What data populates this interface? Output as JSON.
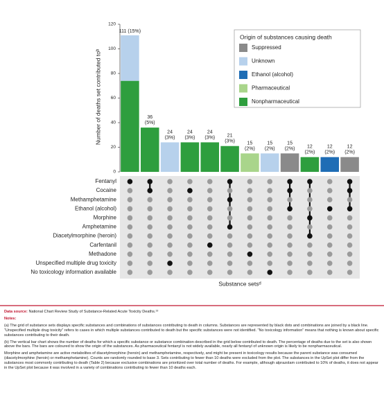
{
  "chart_data": {
    "type": "upset",
    "ylabel": "Number of deaths set contributed toᵇ",
    "xlabel": "Substance setsᵈ",
    "legend_title": "Origin of substances causing death",
    "legend": "top-right",
    "ylim": [
      0,
      120
    ],
    "yticks": [
      0,
      20,
      40,
      60,
      80,
      100,
      120
    ],
    "set_labels": [
      "111 (15%)",
      "36 (5%)",
      "24 (3%)",
      "24 (3%)",
      "24 (3%)",
      "21 (3%)",
      "15 (2%)",
      "15 (2%)",
      "15 (2%)",
      "12 (2%)",
      "12 (2%)",
      "12 (2%)"
    ],
    "series": [
      {
        "name": "Suppressed",
        "color": "#8a8a8a",
        "values": [
          0,
          0,
          0,
          0,
          0,
          0,
          0,
          0,
          15,
          0,
          0,
          12
        ]
      },
      {
        "name": "Unknown",
        "color": "#b7d1ec",
        "values": [
          37,
          0,
          24,
          0,
          0,
          0,
          0,
          15,
          0,
          0,
          0,
          0
        ]
      },
      {
        "name": "Ethanol (alcohol)",
        "color": "#1f6db5",
        "values": [
          0,
          0,
          0,
          0,
          0,
          0,
          0,
          0,
          0,
          0,
          12,
          0
        ]
      },
      {
        "name": "Pharmaceutical",
        "color": "#a9d58b",
        "values": [
          0,
          0,
          0,
          0,
          0,
          0,
          15,
          0,
          0,
          0,
          0,
          0
        ]
      },
      {
        "name": "Nonpharmaceutical",
        "color": "#2e9e3e",
        "values": [
          74,
          36,
          0,
          24,
          24,
          21,
          0,
          0,
          0,
          12,
          0,
          0
        ]
      }
    ],
    "substances": [
      "Fentanyl",
      "Cocaine",
      "Methamphetamine",
      "Ethanol (alcohol)",
      "Morphine",
      "Amphetamine",
      "Diacetylmorphine (heroin)",
      "Carfentanil",
      "Methadone",
      "Unspecified multiple drug toxicity",
      "No toxicology information available"
    ],
    "matrix": [
      [
        1,
        1,
        0,
        0,
        0,
        1,
        0,
        0,
        1,
        1,
        0,
        1
      ],
      [
        0,
        1,
        0,
        1,
        0,
        0,
        0,
        0,
        1,
        0,
        0,
        1
      ],
      [
        0,
        0,
        0,
        0,
        0,
        1,
        0,
        0,
        0,
        0,
        0,
        0
      ],
      [
        0,
        0,
        0,
        0,
        0,
        0,
        0,
        0,
        1,
        0,
        1,
        1
      ],
      [
        0,
        0,
        0,
        0,
        0,
        0,
        0,
        0,
        0,
        1,
        0,
        0
      ],
      [
        0,
        0,
        0,
        0,
        0,
        1,
        0,
        0,
        0,
        0,
        0,
        0
      ],
      [
        0,
        0,
        0,
        0,
        0,
        0,
        0,
        0,
        0,
        1,
        0,
        0
      ],
      [
        0,
        0,
        0,
        0,
        1,
        0,
        0,
        0,
        0,
        0,
        0,
        0
      ],
      [
        0,
        0,
        0,
        0,
        0,
        0,
        1,
        0,
        0,
        0,
        0,
        0
      ],
      [
        0,
        0,
        1,
        0,
        0,
        0,
        0,
        0,
        0,
        0,
        0,
        0
      ],
      [
        0,
        0,
        0,
        0,
        0,
        0,
        0,
        1,
        0,
        0,
        0,
        0
      ]
    ]
  },
  "notes": {
    "source_label": "Data source:",
    "source": "National Chart Review Study of Substance-Related Acute Toxicity Deaths.¹³",
    "heading": "Notes:",
    "paragraphs": [
      "(a) The grid of substance sets displays specific substances and combinations of substances contributing to death in columns. Substances are represented by black dots and combinations are joined by a black line. “Unspecified multiple drug toxicity” refers to cases in which multiple substances contributed to death but the specific substances were not identified. “No toxicology information” means that nothing is known about specific substances contributing to their death.",
      "(b) The vertical bar chart shows the number of deaths for which a specific substance or substance combination described in the grid below contributed to death. The percentage of deaths due to the set is also shown above the bars. The bars are coloured to show the origin of the substances. As pharmaceutical fentanyl is not widely available, nearly all fentanyl of unknown origin is likely to be nonpharmaceutical.",
      "Morphine and amphetamine are active metabolites of diacetylmorphine (heroin) and methamphetamine, respectively, and might be present in toxicology results because the parent substance was consumed (diacetylmorphine (heroin) or methamphetamine). Counts are randomly rounded to base 3. Sets contributing to fewer than 10 deaths were excluded from the plot. The substances in the UpSet plot differ from the substances most commonly contributing to death (Table 2) because exclusive combinations are prioritized over total number of deaths. For example, although alprazolam contributed to 10% of deaths, it does not appear in the UpSet plot because it was involved in a variety of combinations contributing to fewer than 10 deaths each."
    ]
  }
}
